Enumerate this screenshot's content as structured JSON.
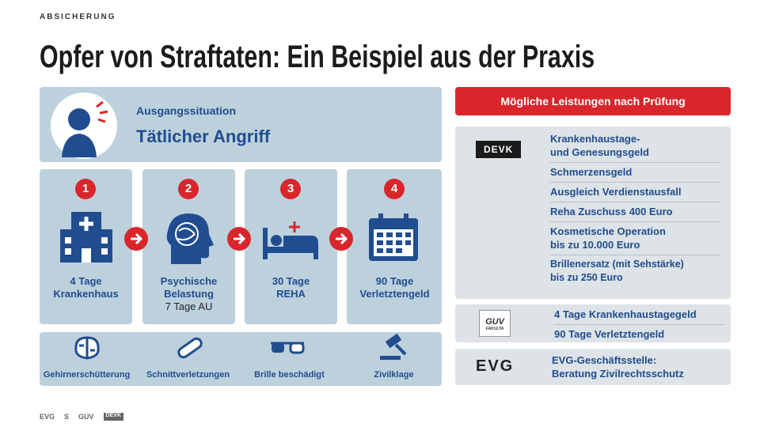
{
  "header": {
    "kicker": "ABSICHERUNG",
    "title": "Opfer von Straftaten: Ein Beispiel aus der Praxis"
  },
  "situation": {
    "label": "Ausgangssituation",
    "title": "Tätlicher Angriff"
  },
  "steps": [
    {
      "number": 1,
      "lines": [
        "4 Tage",
        "Krankenhaus"
      ]
    },
    {
      "number": 2,
      "lines": [
        "Psychische",
        "Belastung"
      ],
      "note": "7 Tage AU"
    },
    {
      "number": 3,
      "lines": [
        "30 Tage",
        "REHA"
      ]
    },
    {
      "number": 4,
      "lines": [
        "90 Tage",
        "Verletztengeld"
      ]
    }
  ],
  "injuries": [
    "Gehirnerschütterung",
    "Schnittverletzungen",
    "Brille beschädigt",
    "Zivilklage"
  ],
  "benefits": {
    "title": "Mögliche Leistungen nach Prüfung",
    "providers": [
      {
        "logo": "DEVK",
        "items": [
          [
            "Krankenhaustage-",
            "und Genesungsgeld"
          ],
          [
            "Schmerzensgeld"
          ],
          [
            "Ausgleich Verdienstausfall"
          ],
          [
            "Reha Zuschuss 400 Euro"
          ],
          [
            "Kosmetische Operation",
            "bis zu 10.000 Euro"
          ],
          [
            "Brillenersatz (mit Sehstärke)",
            "bis zu 250 Euro"
          ]
        ]
      },
      {
        "logo": "GUV",
        "logo_sub": "FAKULTA",
        "items": [
          [
            "4 Tage Krankenhaustagegeld"
          ],
          [
            "90 Tage Verletztengeld"
          ]
        ]
      },
      {
        "logo": "EVG",
        "items": [
          [
            "EVG-Geschäftsstelle:",
            "Beratung Zivilrechtsschutz"
          ]
        ]
      }
    ]
  },
  "footer": {
    "logos": [
      "EVG",
      "S",
      "GUV",
      "DEVK"
    ]
  }
}
